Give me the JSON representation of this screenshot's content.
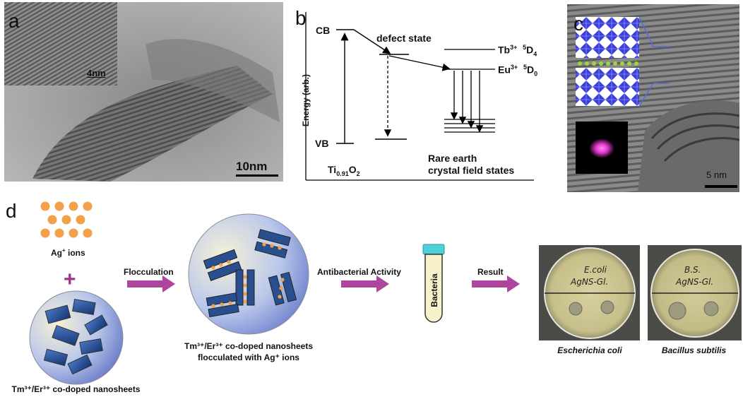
{
  "panels": {
    "a": {
      "letter": "a",
      "inset_scale": "4nm",
      "scale": "10nm"
    },
    "b": {
      "letter": "b",
      "cb": "CB",
      "vb": "VB",
      "defect": "defect state",
      "tb": "Tb",
      "tb_sup": "3+",
      "tb_level_sup": "5",
      "tb_level": "D",
      "tb_level_sub": "4",
      "eu": "Eu",
      "eu_sup": "3+",
      "eu_level_sup": "5",
      "eu_level": "D",
      "eu_level_sub": "0",
      "energy_axis": "Energy (arb.)",
      "host_base": "Ti",
      "host_sub1": "0.91",
      "host_o": "O",
      "host_sub2": "2",
      "rare_earth_1": "Rare earth",
      "rare_earth_2": "crystal field states"
    },
    "c": {
      "letter": "c",
      "scale": "5 nm"
    },
    "d": {
      "letter": "d",
      "ag_ions": "Ag",
      "ag_sup": "+",
      "ag_suffix": " ions",
      "plus": "+",
      "nanosheets_caption": "Tm³⁺/Er³⁺ co-doped nanosheets",
      "flocculation": "Flocculation",
      "floc_caption_1": "Tm³⁺/Er³⁺ co-doped nanosheets",
      "floc_caption_2": "flocculated with Ag⁺ ions",
      "antibacterial": "Antibacterial Activity",
      "bacteria": "Bacteria",
      "result": "Result",
      "ecoli": "Escherichia coli",
      "bsubtilis": "Bacillus subtilis",
      "plate1_hw1": "E.coli",
      "plate1_hw2": "AgNS-Gl.",
      "plate2_hw1": "B.S.",
      "plate2_hw2": "AgNS-Gl."
    }
  },
  "colors": {
    "ion": "#f2a14a",
    "plus": "#a3328e",
    "arrow": "#b0459e",
    "sheet": "#2a4f8f",
    "cap": "#4fd0d8"
  }
}
